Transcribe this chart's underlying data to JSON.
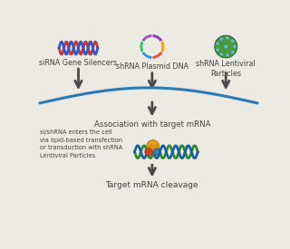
{
  "bg_color": "#ede9e3",
  "arrow_color": "#4a4a4a",
  "curve_color": "#2a7ab5",
  "dna_red": "#cc3333",
  "dna_blue": "#3355cc",
  "text_color": "#444444",
  "green_virus": "#4a9c3a",
  "virus_dot": "#6bbfdf",
  "mrna_green": "#2d8b2d",
  "mrna_blue": "#1a5fa0",
  "risc_orange": "#e8920a",
  "risc_red": "#d43a2a",
  "risc_blue": "#2a80c0",
  "label_sirna": "siRNA Gene Silencers",
  "label_shrna_plasmid": "shRNA Plasmid DNA",
  "label_shrna_lentiviral": "shRNA Lentiviral\nParticles",
  "label_association": "Association with target mRNA",
  "label_cleavage": "Target mRNA cleavage",
  "label_side": "si/shRNA enters the cell\nvia lipid-based transfection\nor transduction with shRNA\nLentiviral Particles",
  "fs_label": 5.8,
  "fs_side": 4.8,
  "fs_assoc": 6.2,
  "fs_cleave": 6.5
}
